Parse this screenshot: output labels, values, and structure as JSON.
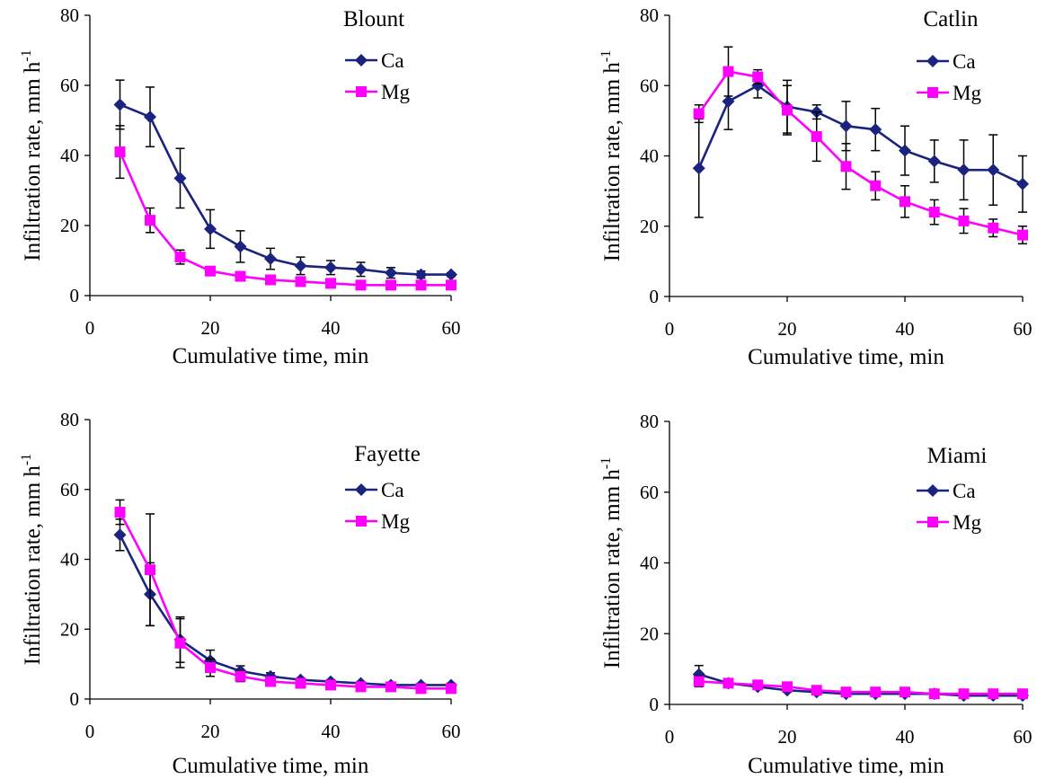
{
  "chart_data": [
    {
      "type": "line",
      "title": "Blount",
      "xlabel": "Cumulative time, min",
      "ylabel": "Infiltration rate, mm h",
      "ylabel_sup": "-1",
      "xlim": [
        0,
        60
      ],
      "ylim": [
        0,
        80
      ],
      "xticks": [
        "0",
        "20",
        "40",
        "60"
      ],
      "yticks": [
        "0",
        "20",
        "40",
        "60",
        "80"
      ],
      "legend_position": "top-right",
      "x": [
        5,
        10,
        15,
        20,
        25,
        30,
        35,
        40,
        45,
        50,
        55,
        60
      ],
      "series": [
        {
          "name": "Ca",
          "color": "#1a237e",
          "marker": "diamond",
          "values": [
            54.5,
            51,
            33.5,
            19,
            14,
            10.5,
            8.5,
            8,
            7.5,
            6.5,
            6,
            6
          ],
          "error": [
            7,
            8.5,
            8.5,
            5.5,
            4.5,
            3,
            2.5,
            2,
            2,
            1.5,
            1,
            0.5
          ]
        },
        {
          "name": "Mg",
          "color": "#ff00ff",
          "marker": "square",
          "values": [
            41,
            21.5,
            11,
            7,
            5.5,
            4.5,
            4,
            3.5,
            3,
            3,
            3,
            3
          ],
          "error": [
            7.5,
            3.5,
            2,
            1,
            0.5,
            0.5,
            0.5,
            0.5,
            0.5,
            0.5,
            0.5,
            0.5
          ]
        }
      ]
    },
    {
      "type": "line",
      "title": "Catlin",
      "xlabel": "Cumulative time, min",
      "ylabel": "Infiltration rate, mm h",
      "ylabel_sup": "-1",
      "xlim": [
        0,
        60
      ],
      "ylim": [
        0,
        80
      ],
      "xticks": [
        "0",
        "20",
        "40",
        "60"
      ],
      "yticks": [
        "0",
        "20",
        "40",
        "60",
        "80"
      ],
      "legend_position": "top-right",
      "x": [
        5,
        10,
        15,
        20,
        25,
        30,
        35,
        40,
        45,
        50,
        55,
        60
      ],
      "series": [
        {
          "name": "Ca",
          "color": "#1a237e",
          "marker": "diamond",
          "values": [
            36.5,
            55.5,
            60,
            54,
            52.5,
            48.5,
            47.5,
            41.5,
            38.5,
            36,
            36,
            32
          ],
          "error": [
            14,
            8,
            3.5,
            7.5,
            2,
            7,
            6,
            7,
            6,
            8.5,
            10,
            8
          ]
        },
        {
          "name": "Mg",
          "color": "#ff00ff",
          "marker": "square",
          "values": [
            52,
            64,
            62.5,
            53,
            45.5,
            37,
            31.5,
            27,
            24,
            21.5,
            19.5,
            17.5
          ],
          "error": [
            2.5,
            7,
            2,
            7,
            7,
            6.5,
            4,
            4.5,
            3.5,
            3.5,
            2.5,
            2.5
          ]
        }
      ]
    },
    {
      "type": "line",
      "title": "Fayette",
      "xlabel": "Cumulative time, min",
      "ylabel": "Infiltration rate, mm h",
      "ylabel_sup": "-1",
      "xlim": [
        0,
        60
      ],
      "ylim": [
        0,
        80
      ],
      "xticks": [
        "0",
        "20",
        "40",
        "60"
      ],
      "yticks": [
        "0",
        "20",
        "40",
        "60",
        "80"
      ],
      "legend_position": "top-right",
      "x": [
        5,
        10,
        15,
        20,
        25,
        30,
        35,
        40,
        45,
        50,
        55,
        60
      ],
      "series": [
        {
          "name": "Ca",
          "color": "#1a237e",
          "marker": "diamond",
          "values": [
            47,
            30,
            17,
            11,
            8,
            6.5,
            5.5,
            5,
            4.5,
            4,
            4,
            4
          ],
          "error": [
            4.5,
            9,
            6.5,
            3,
            1.5,
            1,
            0.5,
            0.5,
            0.5,
            0.5,
            0.5,
            0.5
          ]
        },
        {
          "name": "Mg",
          "color": "#ff00ff",
          "marker": "square",
          "values": [
            53.5,
            37,
            16,
            9,
            6.5,
            5,
            4.5,
            4,
            3.5,
            3.5,
            3,
            3
          ],
          "error": [
            3.5,
            16,
            7,
            2.5,
            1.5,
            1,
            0.5,
            0.5,
            0.5,
            0.5,
            0.5,
            0.5
          ]
        }
      ]
    },
    {
      "type": "line",
      "title": "Miami",
      "xlabel": "Cumulative time, min",
      "ylabel": "Infiltration rate, mm h",
      "ylabel_sup": "-1",
      "xlim": [
        0,
        60
      ],
      "ylim": [
        0,
        80
      ],
      "xticks": [
        "0",
        "20",
        "40",
        "60"
      ],
      "yticks": [
        "0",
        "20",
        "40",
        "60",
        "80"
      ],
      "legend_position": "top-right",
      "x": [
        5,
        10,
        15,
        20,
        25,
        30,
        35,
        40,
        45,
        50,
        55,
        60
      ],
      "series": [
        {
          "name": "Ca",
          "color": "#1a237e",
          "marker": "diamond",
          "values": [
            8.5,
            6,
            5,
            4,
            3.5,
            3,
            3,
            3,
            3,
            2.5,
            2.5,
            2.5
          ],
          "error": [
            2.5,
            1,
            0.5,
            0.5,
            0.5,
            0.5,
            0.5,
            0.5,
            0.5,
            0.5,
            0.5,
            0.5
          ]
        },
        {
          "name": "Mg",
          "color": "#ff00ff",
          "marker": "square",
          "values": [
            6.5,
            6,
            5.5,
            5,
            4,
            3.5,
            3.5,
            3.5,
            3,
            3,
            3,
            3
          ],
          "error": [
            1.5,
            0.5,
            0.5,
            0.5,
            0.5,
            0.5,
            0.5,
            0.5,
            0.5,
            0.5,
            0.5,
            0.5
          ]
        }
      ]
    }
  ]
}
